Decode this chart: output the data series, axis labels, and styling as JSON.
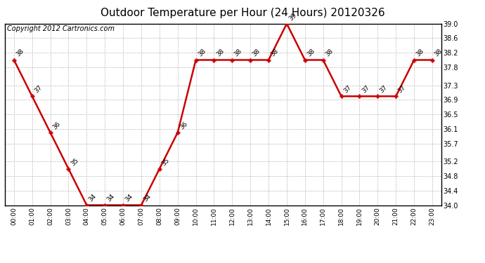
{
  "title": "Outdoor Temperature per Hour (24 Hours) 20120326",
  "copyright_text": "Copyright 2012 Cartronics.com",
  "hours": [
    "00:00",
    "01:00",
    "02:00",
    "03:00",
    "04:00",
    "05:00",
    "06:00",
    "07:00",
    "08:00",
    "09:00",
    "10:00",
    "11:00",
    "12:00",
    "13:00",
    "14:00",
    "15:00",
    "16:00",
    "17:00",
    "18:00",
    "19:00",
    "20:00",
    "21:00",
    "22:00",
    "23:00"
  ],
  "temperatures": [
    38,
    37,
    36,
    35,
    34,
    34,
    34,
    34,
    35,
    36,
    38,
    38,
    38,
    38,
    38,
    39,
    38,
    38,
    37,
    37,
    37,
    37,
    38,
    38
  ],
  "line_color": "#cc0000",
  "marker_color": "#cc0000",
  "bg_color": "#ffffff",
  "grid_color": "#bbbbbb",
  "ylim": [
    34.0,
    39.0
  ],
  "yticks": [
    34.0,
    34.4,
    34.8,
    35.2,
    35.7,
    36.1,
    36.5,
    36.9,
    37.3,
    37.8,
    38.2,
    38.6,
    39.0
  ],
  "title_fontsize": 11,
  "annotation_fontsize": 6.5,
  "copyright_fontsize": 7
}
